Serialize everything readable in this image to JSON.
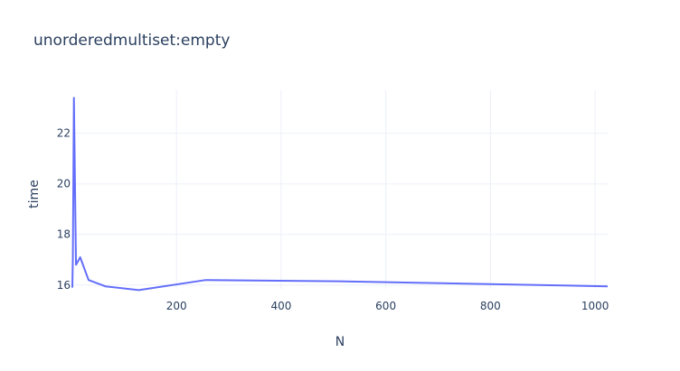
{
  "chart_data": {
    "type": "line",
    "title": "unorderedmultiset:empty",
    "xlabel": "N",
    "ylabel": "time",
    "xlim": [
      1,
      1024
    ],
    "ylim": [
      15.85,
      23.7
    ],
    "x_ticks": [
      200,
      400,
      600,
      800,
      1000
    ],
    "y_ticks": [
      16,
      18,
      20,
      22
    ],
    "grid": true,
    "series": [
      {
        "color": "#636efa",
        "x": [
          1,
          2,
          4,
          8,
          16,
          32,
          64,
          128,
          256,
          512,
          1024
        ],
        "y": [
          15.9,
          17.1,
          23.4,
          16.8,
          17.1,
          16.2,
          15.95,
          15.8,
          16.2,
          16.15,
          15.95
        ]
      }
    ]
  }
}
